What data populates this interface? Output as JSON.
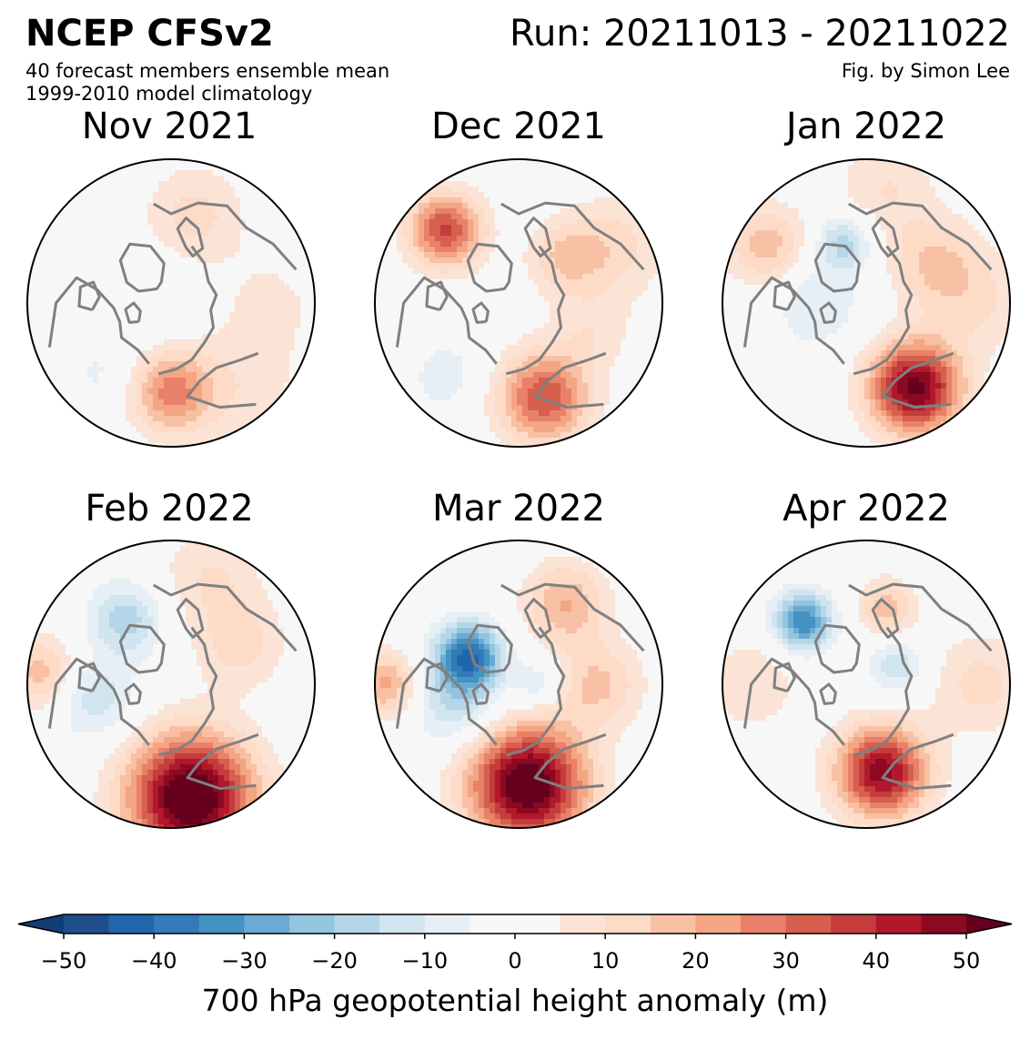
{
  "header": {
    "title": "NCEP CFSv2",
    "run": "Run: 20211013 - 20211022",
    "subtitle1": "40 forecast members ensemble mean",
    "subtitle2": "1999-2010 model climatology",
    "credit": "Fig. by Simon Lee"
  },
  "panels": [
    {
      "title": "Nov 2021",
      "blobs": [
        {
          "lon": 180,
          "r": 0.62,
          "amp": 26,
          "size": 0.2
        },
        {
          "lon": 140,
          "r": 0.75,
          "amp": 8,
          "size": 0.3
        },
        {
          "lon": 225,
          "r": 0.7,
          "amp": -6,
          "size": 0.18
        },
        {
          "lon": 15,
          "r": 0.62,
          "amp": 12,
          "size": 0.25
        },
        {
          "lon": 300,
          "r": 0.15,
          "amp": -4,
          "size": 0.25
        },
        {
          "lon": 90,
          "r": 0.7,
          "amp": 6,
          "size": 0.25
        }
      ]
    },
    {
      "title": "Dec 2021",
      "blobs": [
        {
          "lon": 165,
          "r": 0.68,
          "amp": 35,
          "size": 0.22
        },
        {
          "lon": 315,
          "r": 0.72,
          "amp": 36,
          "size": 0.18
        },
        {
          "lon": 45,
          "r": 0.45,
          "amp": 14,
          "size": 0.18
        },
        {
          "lon": 225,
          "r": 0.72,
          "amp": -8,
          "size": 0.18
        },
        {
          "lon": 60,
          "r": 0.78,
          "amp": 12,
          "size": 0.25
        },
        {
          "lon": 110,
          "r": 0.55,
          "amp": 8,
          "size": 0.2
        }
      ]
    },
    {
      "title": "Jan 2022",
      "blobs": [
        {
          "lon": 150,
          "r": 0.68,
          "amp": 52,
          "size": 0.22
        },
        {
          "lon": 340,
          "r": 0.45,
          "amp": -18,
          "size": 0.14
        },
        {
          "lon": 270,
          "r": 0.35,
          "amp": -10,
          "size": 0.22
        },
        {
          "lon": 60,
          "r": 0.55,
          "amp": 15,
          "size": 0.22
        },
        {
          "lon": 300,
          "r": 0.8,
          "amp": 18,
          "size": 0.2
        },
        {
          "lon": 90,
          "r": 0.8,
          "amp": 10,
          "size": 0.25
        },
        {
          "lon": 10,
          "r": 0.8,
          "amp": 10,
          "size": 0.25
        }
      ]
    },
    {
      "title": "Feb 2022",
      "blobs": [
        {
          "lon": 170,
          "r": 0.8,
          "amp": 60,
          "size": 0.3
        },
        {
          "lon": 325,
          "r": 0.55,
          "amp": -18,
          "size": 0.18
        },
        {
          "lon": 260,
          "r": 0.55,
          "amp": -14,
          "size": 0.2
        },
        {
          "lon": 60,
          "r": 0.55,
          "amp": 12,
          "size": 0.22
        },
        {
          "lon": 275,
          "r": 0.9,
          "amp": 18,
          "size": 0.18
        },
        {
          "lon": 20,
          "r": 0.8,
          "amp": 10,
          "size": 0.25
        }
      ]
    },
    {
      "title": "Mar 2022",
      "blobs": [
        {
          "lon": 175,
          "r": 0.7,
          "amp": 58,
          "size": 0.28
        },
        {
          "lon": 300,
          "r": 0.4,
          "amp": -38,
          "size": 0.16
        },
        {
          "lon": 255,
          "r": 0.45,
          "amp": -16,
          "size": 0.22
        },
        {
          "lon": 30,
          "r": 0.65,
          "amp": 20,
          "size": 0.2
        },
        {
          "lon": 90,
          "r": 0.55,
          "amp": 16,
          "size": 0.22
        },
        {
          "lon": 90,
          "r": 0.15,
          "amp": -12,
          "size": 0.12
        },
        {
          "lon": 270,
          "r": 0.92,
          "amp": 22,
          "size": 0.16
        }
      ]
    },
    {
      "title": "Apr 2022",
      "blobs": [
        {
          "lon": 170,
          "r": 0.62,
          "amp": 48,
          "size": 0.22
        },
        {
          "lon": 315,
          "r": 0.62,
          "amp": -35,
          "size": 0.14
        },
        {
          "lon": 60,
          "r": 0.25,
          "amp": -14,
          "size": 0.14
        },
        {
          "lon": 15,
          "r": 0.55,
          "amp": 18,
          "size": 0.14
        },
        {
          "lon": 90,
          "r": 0.8,
          "amp": 12,
          "size": 0.25
        },
        {
          "lon": 270,
          "r": 0.8,
          "amp": 10,
          "size": 0.22
        }
      ]
    }
  ],
  "colorbar": {
    "label": "700 hPa geopotential height anomaly (m)",
    "ticks": [
      "−50",
      "−40",
      "−30",
      "−20",
      "−10",
      "0",
      "10",
      "20",
      "30",
      "40",
      "50"
    ],
    "levels": [
      -50,
      -45,
      -40,
      -35,
      -30,
      -25,
      -20,
      -15,
      -10,
      -5,
      0,
      5,
      10,
      15,
      20,
      25,
      30,
      35,
      40,
      45,
      50
    ],
    "colors": [
      "#1e4f8c",
      "#2166ac",
      "#3479b8",
      "#4393c3",
      "#6aaad4",
      "#92c5de",
      "#b5d6e8",
      "#d1e5f0",
      "#e6eff5",
      "#f7f7f7",
      "#f7f7f7",
      "#fbe3d6",
      "#fddbc7",
      "#f8c0a4",
      "#f4a582",
      "#e8806a",
      "#d6604d",
      "#c43c3c",
      "#b2182b",
      "#8b0a22"
    ],
    "under_color": "#123e73",
    "over_color": "#67001f"
  },
  "colors": {
    "coastline": "#808080",
    "frame": "#000000"
  }
}
